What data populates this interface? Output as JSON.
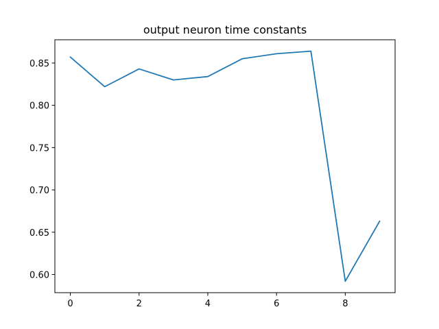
{
  "chart_data": {
    "type": "line",
    "title": "output neuron time constants",
    "xlabel": "",
    "ylabel": "",
    "xlim": [
      -0.45,
      9.45
    ],
    "ylim": [
      0.5785,
      0.8775
    ],
    "xticks": [
      0,
      2,
      4,
      6,
      8
    ],
    "xtick_labels": [
      "0",
      "2",
      "4",
      "6",
      "8"
    ],
    "yticks": [
      0.6,
      0.65,
      0.7,
      0.75,
      0.8,
      0.85
    ],
    "ytick_labels": [
      "0.60",
      "0.65",
      "0.70",
      "0.75",
      "0.80",
      "0.85"
    ],
    "grid": false,
    "series": [
      {
        "color": "#1f77b4",
        "x": [
          0,
          1,
          2,
          3,
          4,
          5,
          6,
          7,
          8,
          9
        ],
        "y": [
          0.857,
          0.822,
          0.843,
          0.83,
          0.834,
          0.855,
          0.861,
          0.864,
          0.592,
          0.663
        ]
      }
    ]
  }
}
